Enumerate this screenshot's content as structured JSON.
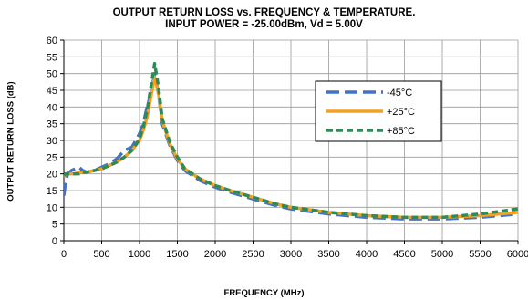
{
  "chart_data": {
    "type": "line",
    "title": "OUTPUT RETURN LOSS vs. FREQUENCY & TEMPERATURE.",
    "subtitle": "INPUT POWER = -25.00dBm, Vd = 5.00V",
    "xlabel": "FREQUENCY (MHz)",
    "ylabel": "OUTPUT RETURN LOSS (dB)",
    "xlim": [
      0,
      6000
    ],
    "ylim": [
      0,
      60
    ],
    "xticks": [
      0,
      500,
      1000,
      1500,
      2000,
      2500,
      3000,
      3500,
      4000,
      4500,
      5000,
      5500,
      6000
    ],
    "yticks": [
      0,
      5,
      10,
      15,
      20,
      25,
      30,
      35,
      40,
      45,
      50,
      55,
      60
    ],
    "grid": true,
    "legend_position": "top-right",
    "series": [
      {
        "name": "-45°C",
        "color": "#4472C4",
        "dash": "long-dash",
        "x": [
          0,
          20,
          50,
          100,
          150,
          200,
          250,
          300,
          400,
          500,
          600,
          700,
          800,
          900,
          1000,
          1050,
          1100,
          1150,
          1200,
          1250,
          1300,
          1400,
          1500,
          1600,
          1800,
          2000,
          2200,
          2500,
          2800,
          3000,
          3500,
          4000,
          4500,
          5000,
          5500,
          6000
        ],
        "y": [
          13.5,
          17,
          20,
          21,
          21.5,
          22,
          21,
          20.5,
          21,
          22,
          23,
          24.5,
          27,
          28,
          32,
          35,
          40,
          44,
          50,
          44,
          35,
          28.5,
          24,
          21,
          18,
          16,
          14.5,
          12.5,
          10.5,
          9.5,
          8,
          7,
          6.5,
          6.5,
          7,
          8
        ]
      },
      {
        "name": "+25°C",
        "color": "#F4A020",
        "dash": "solid",
        "x": [
          0,
          20,
          50,
          100,
          150,
          200,
          250,
          300,
          400,
          500,
          600,
          700,
          800,
          900,
          1000,
          1050,
          1100,
          1150,
          1200,
          1250,
          1300,
          1400,
          1500,
          1600,
          1800,
          2000,
          2200,
          2500,
          2800,
          3000,
          3500,
          4000,
          4500,
          5000,
          5500,
          6000
        ],
        "y": [
          19,
          20,
          20,
          20,
          20,
          20.5,
          20.5,
          20.5,
          21,
          21.5,
          22.5,
          23.5,
          25,
          27,
          30,
          33,
          37,
          43,
          49,
          44,
          36,
          29,
          24.5,
          21.5,
          18.5,
          16.5,
          15,
          13,
          11,
          10,
          8.5,
          7.5,
          7,
          7,
          7.5,
          8.5
        ]
      },
      {
        "name": "+85°C",
        "color": "#2E8B57",
        "dash": "short-dash",
        "x": [
          0,
          20,
          50,
          100,
          150,
          200,
          250,
          300,
          400,
          500,
          600,
          700,
          800,
          900,
          1000,
          1050,
          1100,
          1150,
          1200,
          1250,
          1300,
          1400,
          1500,
          1600,
          1800,
          2000,
          2200,
          2500,
          2800,
          3000,
          3500,
          4000,
          4500,
          5000,
          5500,
          6000
        ],
        "y": [
          19.5,
          20,
          20,
          20,
          20,
          20,
          20.5,
          20.5,
          21,
          21.5,
          22.5,
          23.5,
          25,
          27,
          30.5,
          34,
          39,
          46,
          53,
          46,
          36.5,
          29.5,
          25,
          21.5,
          18.5,
          16.5,
          15,
          13,
          11,
          10,
          8.5,
          7.5,
          7,
          7,
          8,
          9.5
        ]
      }
    ]
  }
}
